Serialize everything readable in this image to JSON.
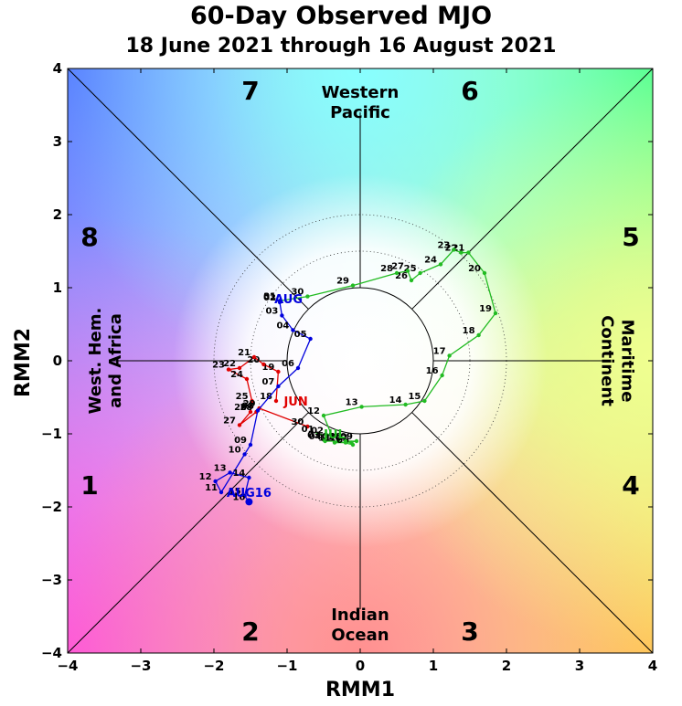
{
  "chart_data": {
    "type": "line",
    "title": "60-Day Observed MJO",
    "subtitle": "18 June 2021 through 16 August 2021",
    "xlabel": "RMM1",
    "ylabel": "RMM2",
    "xlim": [
      -4,
      4
    ],
    "ylim": [
      -4,
      4
    ],
    "xticks": [
      "−4",
      "−3",
      "−2",
      "−1",
      "0",
      "1",
      "2",
      "3",
      "4"
    ],
    "yticks": [
      "−4",
      "−3",
      "−2",
      "−1",
      "0",
      "1",
      "2",
      "3",
      "4"
    ],
    "grid": false,
    "phases": [
      {
        "label": "1",
        "x": -3.7,
        "y": -1.7
      },
      {
        "label": "2",
        "x": -1.5,
        "y": -3.7
      },
      {
        "label": "3",
        "x": 1.5,
        "y": -3.7
      },
      {
        "label": "4",
        "x": 3.7,
        "y": -1.7
      },
      {
        "label": "5",
        "x": 3.7,
        "y": 1.7
      },
      {
        "label": "6",
        "x": 1.5,
        "y": 3.7
      },
      {
        "label": "7",
        "x": -1.5,
        "y": 3.7
      },
      {
        "label": "8",
        "x": -3.7,
        "y": 1.7
      }
    ],
    "regions": {
      "top": [
        "Western",
        "Pacific"
      ],
      "bottom": [
        "Indian",
        "Ocean"
      ],
      "left": [
        "West. Hem.",
        "and Africa"
      ],
      "right": [
        "Maritime",
        "Continent"
      ]
    },
    "series": [
      {
        "month_label": "JUN",
        "color": "#e00000",
        "points": [
          {
            "d": "18",
            "x": -1.15,
            "y": -0.55
          },
          {
            "d": "19",
            "x": -1.12,
            "y": -0.15
          },
          {
            "d": "20",
            "x": -1.32,
            "y": -0.05
          },
          {
            "d": "21",
            "x": -1.45,
            "y": 0.05
          },
          {
            "d": "22",
            "x": -1.65,
            "y": -0.1
          },
          {
            "d": "23",
            "x": -1.8,
            "y": -0.12
          },
          {
            "d": "24",
            "x": -1.55,
            "y": -0.25
          },
          {
            "d": "25",
            "x": -1.48,
            "y": -0.55
          },
          {
            "d": "26",
            "x": -1.5,
            "y": -0.7
          },
          {
            "d": "27",
            "x": -1.65,
            "y": -0.88
          },
          {
            "d": "28",
            "x": -1.42,
            "y": -0.7
          },
          {
            "d": "29",
            "x": -1.38,
            "y": -0.65
          },
          {
            "d": "30",
            "x": -0.72,
            "y": -0.9
          }
        ]
      },
      {
        "month_label": "JUL",
        "color": "#22bb22",
        "points": [
          {
            "d": "01",
            "x": -0.58,
            "y": -1.0
          },
          {
            "d": "02",
            "x": -0.45,
            "y": -1.02
          },
          {
            "d": "03",
            "x": -0.5,
            "y": -1.08
          },
          {
            "d": "04",
            "x": -0.48,
            "y": -1.1
          },
          {
            "d": "05",
            "x": -0.3,
            "y": -1.1
          },
          {
            "d": "06",
            "x": -0.1,
            "y": -1.15
          },
          {
            "d": "07",
            "x": -0.12,
            "y": -1.12
          },
          {
            "d": "08",
            "x": -0.2,
            "y": -1.1
          },
          {
            "d": "09",
            "x": -0.05,
            "y": -1.1
          },
          {
            "d": "10",
            "x": -0.2,
            "y": -1.12
          },
          {
            "d": "11",
            "x": -0.35,
            "y": -1.12
          },
          {
            "d": "12",
            "x": -0.5,
            "y": -0.75
          },
          {
            "d": "13",
            "x": 0.02,
            "y": -0.63
          },
          {
            "d": "14",
            "x": 0.62,
            "y": -0.6
          },
          {
            "d": "15",
            "x": 0.88,
            "y": -0.55
          },
          {
            "d": "16",
            "x": 1.12,
            "y": -0.2
          },
          {
            "d": "17",
            "x": 1.22,
            "y": 0.07
          },
          {
            "d": "18",
            "x": 1.62,
            "y": 0.35
          },
          {
            "d": "19",
            "x": 1.85,
            "y": 0.65
          },
          {
            "d": "20",
            "x": 1.7,
            "y": 1.2
          },
          {
            "d": "21",
            "x": 1.48,
            "y": 1.48
          },
          {
            "d": "22",
            "x": 1.38,
            "y": 1.48
          },
          {
            "d": "23",
            "x": 1.28,
            "y": 1.52
          },
          {
            "d": "24",
            "x": 1.1,
            "y": 1.32
          },
          {
            "d": "25",
            "x": 0.82,
            "y": 1.2
          },
          {
            "d": "26",
            "x": 0.7,
            "y": 1.1
          },
          {
            "d": "27",
            "x": 0.65,
            "y": 1.23
          },
          {
            "d": "28",
            "x": 0.5,
            "y": 1.2
          },
          {
            "d": "29",
            "x": -0.1,
            "y": 1.03
          },
          {
            "d": "30",
            "x": -0.72,
            "y": 0.88
          },
          {
            "d": "31",
            "x": -1.1,
            "y": 0.82
          }
        ]
      },
      {
        "month_label": "AUG",
        "color": "#0000dd",
        "points": [
          {
            "d": "01",
            "x": -1.1,
            "y": 0.82
          },
          {
            "d": "02",
            "x": -1.1,
            "y": 0.8
          },
          {
            "d": "03",
            "x": -1.07,
            "y": 0.62
          },
          {
            "d": "04",
            "x": -0.92,
            "y": 0.42
          },
          {
            "d": "05",
            "x": -0.68,
            "y": 0.3
          },
          {
            "d": "06",
            "x": -0.85,
            "y": -0.1
          },
          {
            "d": "07",
            "x": -1.12,
            "y": -0.35
          },
          {
            "d": "08",
            "x": -1.4,
            "y": -0.68
          },
          {
            "d": "09",
            "x": -1.5,
            "y": -1.15
          },
          {
            "d": "10",
            "x": -1.58,
            "y": -1.28
          },
          {
            "d": "11",
            "x": -1.9,
            "y": -1.8
          },
          {
            "d": "12",
            "x": -1.98,
            "y": -1.65
          },
          {
            "d": "13",
            "x": -1.78,
            "y": -1.53
          },
          {
            "d": "14",
            "x": -1.52,
            "y": -1.6
          },
          {
            "d": "15",
            "x": -1.58,
            "y": -1.85
          },
          {
            "d": "16",
            "x": -1.52,
            "y": -1.93
          }
        ]
      }
    ],
    "annotations": [
      {
        "text": "JUN",
        "color": "#e00000",
        "x": -0.88,
        "y": -0.55
      },
      {
        "text": "JUL",
        "color": "#22bb22",
        "x": -0.35,
        "y": -1.0
      },
      {
        "text": "AUG",
        "color": "#0000dd",
        "x": -0.98,
        "y": 0.85
      },
      {
        "text": "AUG16",
        "color": "#0000dd",
        "x": -1.52,
        "y": -1.8
      }
    ]
  }
}
